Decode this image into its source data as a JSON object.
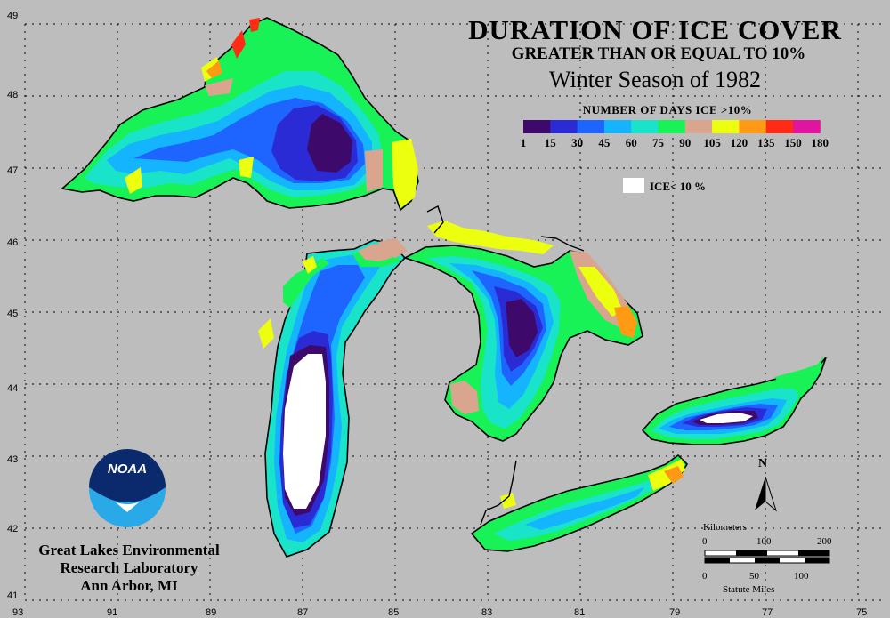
{
  "title": {
    "line1": "DURATION OF ICE COVER",
    "line2": "GREATER THAN OR EQUAL TO 10%",
    "line3": "Winter Season of 1982"
  },
  "legend": {
    "title": "NUMBER OF DAYS ICE >10%",
    "breaks": [
      "1",
      "15",
      "30",
      "45",
      "60",
      "75",
      "90",
      "105",
      "120",
      "135",
      "150",
      "180"
    ],
    "colors": [
      "#3d0a6b",
      "#2b2bd6",
      "#1e64ff",
      "#14b4ff",
      "#19e3c9",
      "#19f257",
      "#d9a58e",
      "#ebff0f",
      "#ff9a14",
      "#ff2b14",
      "#e0149e"
    ],
    "ice_label": "ICE< 10 %",
    "ice_color": "#ffffff"
  },
  "axes": {
    "longitudes": [
      "93",
      "91",
      "89",
      "87",
      "85",
      "83",
      "81",
      "79",
      "77",
      "75"
    ],
    "latitudes": [
      "49",
      "48",
      "47",
      "46",
      "45",
      "44",
      "43",
      "42",
      "41"
    ]
  },
  "organization": {
    "line1": "Great Lakes Environmental",
    "line2": "Research Laboratory",
    "line3": "Ann Arbor, MI",
    "logo_text": "NOAA"
  },
  "scale_bar": {
    "km_label": "Kilometers",
    "km_ticks": [
      "0",
      "100",
      "200"
    ],
    "mi_label": "Statute Miles",
    "mi_ticks": [
      "0",
      "50",
      "100"
    ]
  },
  "north_arrow": {
    "label": "N"
  },
  "colors": {
    "background": "#bdbdbd"
  }
}
